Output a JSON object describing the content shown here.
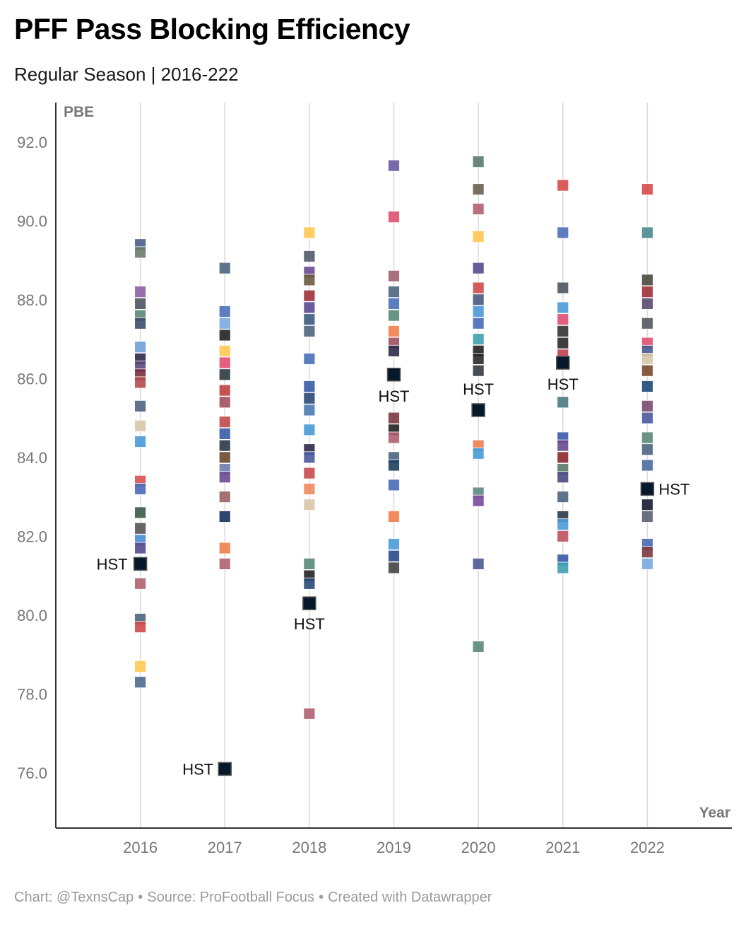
{
  "title": "PFF Pass Blocking Efficiency",
  "subtitle": "Regular Season | 2016-222",
  "footer": {
    "chart_credit": "Chart: @TexnsCap",
    "source": "Source: ProFootball Focus",
    "tool": "Created with Datawrapper",
    "separator": "•"
  },
  "colors": {
    "highlight": "#06192a",
    "grid": "#d9d9d9",
    "axis": "#333333",
    "tick_text": "#777777"
  },
  "chart_data": {
    "type": "scatter",
    "xlabel": "Year",
    "ylabel": "PBE",
    "x_ticks": [
      "2016",
      "2017",
      "2018",
      "2019",
      "2020",
      "2021",
      "2022"
    ],
    "y_ticks": [
      "76.0",
      "78.0",
      "80.0",
      "82.0",
      "84.0",
      "86.0",
      "88.0",
      "90.0",
      "92.0"
    ],
    "xlim": [
      2015,
      2023
    ],
    "ylim": [
      74.6,
      93
    ],
    "grid": "vertical",
    "marker": "square",
    "highlight_label": "HST",
    "highlight_points": [
      {
        "x": 2016,
        "y": 81.3,
        "label": "HST"
      },
      {
        "x": 2017,
        "y": 76.1,
        "label": "HST"
      },
      {
        "x": 2018,
        "y": 80.3,
        "label": "HST"
      },
      {
        "x": 2019,
        "y": 86.1,
        "label": "HST"
      },
      {
        "x": 2020,
        "y": 85.2,
        "label": "HST"
      },
      {
        "x": 2021,
        "y": 86.4,
        "label": "HST"
      },
      {
        "x": 2022,
        "y": 83.2,
        "label": "HST"
      }
    ],
    "other_points": [
      {
        "x": 2016,
        "y": 89.4,
        "color": "#4a5d8a"
      },
      {
        "x": 2016,
        "y": 89.2,
        "color": "#6b7a6e"
      },
      {
        "x": 2016,
        "y": 88.2,
        "color": "#8a62a8"
      },
      {
        "x": 2016,
        "y": 87.9,
        "color": "#4f5560"
      },
      {
        "x": 2016,
        "y": 87.6,
        "color": "#5a8a78"
      },
      {
        "x": 2016,
        "y": 87.4,
        "color": "#3b4e6a"
      },
      {
        "x": 2016,
        "y": 86.8,
        "color": "#6fa0d8"
      },
      {
        "x": 2016,
        "y": 86.5,
        "color": "#2d2a4a"
      },
      {
        "x": 2016,
        "y": 86.3,
        "color": "#5a4a80"
      },
      {
        "x": 2016,
        "y": 86.1,
        "color": "#7a3040"
      },
      {
        "x": 2016,
        "y": 85.9,
        "color": "#b54a4a"
      },
      {
        "x": 2016,
        "y": 85.3,
        "color": "#4e6580"
      },
      {
        "x": 2016,
        "y": 84.8,
        "color": "#d8c8a8"
      },
      {
        "x": 2016,
        "y": 84.4,
        "color": "#4a9ad8"
      },
      {
        "x": 2016,
        "y": 83.4,
        "color": "#d85050"
      },
      {
        "x": 2016,
        "y": 83.2,
        "color": "#4a6ab8"
      },
      {
        "x": 2016,
        "y": 82.6,
        "color": "#3a5a48"
      },
      {
        "x": 2016,
        "y": 82.2,
        "color": "#555555"
      },
      {
        "x": 2016,
        "y": 81.9,
        "color": "#4a8ad8"
      },
      {
        "x": 2016,
        "y": 81.7,
        "color": "#5a4a90"
      },
      {
        "x": 2016,
        "y": 80.8,
        "color": "#b06070"
      },
      {
        "x": 2016,
        "y": 79.9,
        "color": "#4e6580"
      },
      {
        "x": 2016,
        "y": 79.7,
        "color": "#d04a4a"
      },
      {
        "x": 2016,
        "y": 78.7,
        "color": "#ffc850"
      },
      {
        "x": 2016,
        "y": 78.3,
        "color": "#4e6a90"
      },
      {
        "x": 2017,
        "y": 88.8,
        "color": "#4e6580"
      },
      {
        "x": 2017,
        "y": 87.7,
        "color": "#4a70b8"
      },
      {
        "x": 2017,
        "y": 87.4,
        "color": "#7aaae0"
      },
      {
        "x": 2017,
        "y": 87.1,
        "color": "#222222"
      },
      {
        "x": 2017,
        "y": 86.7,
        "color": "#ffc850"
      },
      {
        "x": 2017,
        "y": 86.4,
        "color": "#e05070"
      },
      {
        "x": 2017,
        "y": 86.1,
        "color": "#2d3a40"
      },
      {
        "x": 2017,
        "y": 85.7,
        "color": "#c04040"
      },
      {
        "x": 2017,
        "y": 85.4,
        "color": "#a05060"
      },
      {
        "x": 2017,
        "y": 84.9,
        "color": "#c04a4a"
      },
      {
        "x": 2017,
        "y": 84.6,
        "color": "#3a5aa8"
      },
      {
        "x": 2017,
        "y": 84.3,
        "color": "#2a3a48"
      },
      {
        "x": 2017,
        "y": 84.0,
        "color": "#6a4a2a"
      },
      {
        "x": 2017,
        "y": 83.7,
        "color": "#6a80b0"
      },
      {
        "x": 2017,
        "y": 83.5,
        "color": "#6a4a90"
      },
      {
        "x": 2017,
        "y": 83.0,
        "color": "#9a6060"
      },
      {
        "x": 2017,
        "y": 82.5,
        "color": "#1a3060"
      },
      {
        "x": 2017,
        "y": 81.7,
        "color": "#f08050"
      },
      {
        "x": 2017,
        "y": 81.3,
        "color": "#b06070"
      },
      {
        "x": 2018,
        "y": 89.7,
        "color": "#ffc850"
      },
      {
        "x": 2018,
        "y": 89.1,
        "color": "#4f5a6a"
      },
      {
        "x": 2018,
        "y": 88.7,
        "color": "#6a4a90"
      },
      {
        "x": 2018,
        "y": 88.5,
        "color": "#6a5a40"
      },
      {
        "x": 2018,
        "y": 88.1,
        "color": "#a0303a"
      },
      {
        "x": 2018,
        "y": 87.8,
        "color": "#5a4a90"
      },
      {
        "x": 2018,
        "y": 87.5,
        "color": "#3b5a80"
      },
      {
        "x": 2018,
        "y": 87.2,
        "color": "#4e6580"
      },
      {
        "x": 2018,
        "y": 86.5,
        "color": "#4a70b8"
      },
      {
        "x": 2018,
        "y": 85.8,
        "color": "#3a5aa8"
      },
      {
        "x": 2018,
        "y": 85.5,
        "color": "#2a4a78"
      },
      {
        "x": 2018,
        "y": 85.2,
        "color": "#4a7ab0"
      },
      {
        "x": 2018,
        "y": 84.7,
        "color": "#4a9ad8"
      },
      {
        "x": 2018,
        "y": 84.2,
        "color": "#2a2a4a"
      },
      {
        "x": 2018,
        "y": 84.0,
        "color": "#4a5aa0"
      },
      {
        "x": 2018,
        "y": 83.6,
        "color": "#c84a50"
      },
      {
        "x": 2018,
        "y": 83.2,
        "color": "#f08860"
      },
      {
        "x": 2018,
        "y": 82.8,
        "color": "#d8c8a8"
      },
      {
        "x": 2018,
        "y": 81.3,
        "color": "#5a8a78"
      },
      {
        "x": 2018,
        "y": 81.0,
        "color": "#222222"
      },
      {
        "x": 2018,
        "y": 80.8,
        "color": "#2a4a78"
      },
      {
        "x": 2018,
        "y": 77.5,
        "color": "#b06070"
      },
      {
        "x": 2019,
        "y": 91.4,
        "color": "#6a5aa0"
      },
      {
        "x": 2019,
        "y": 90.1,
        "color": "#e05070"
      },
      {
        "x": 2019,
        "y": 88.6,
        "color": "#a06070"
      },
      {
        "x": 2019,
        "y": 88.2,
        "color": "#4e6580"
      },
      {
        "x": 2019,
        "y": 87.9,
        "color": "#4a70b8"
      },
      {
        "x": 2019,
        "y": 87.6,
        "color": "#5a8a78"
      },
      {
        "x": 2019,
        "y": 87.2,
        "color": "#f08050"
      },
      {
        "x": 2019,
        "y": 86.9,
        "color": "#a05060"
      },
      {
        "x": 2019,
        "y": 86.7,
        "color": "#2d2a4a"
      },
      {
        "x": 2019,
        "y": 85.0,
        "color": "#7a3a40"
      },
      {
        "x": 2019,
        "y": 84.7,
        "color": "#222222"
      },
      {
        "x": 2019,
        "y": 84.5,
        "color": "#b06070"
      },
      {
        "x": 2019,
        "y": 84.0,
        "color": "#4e6580"
      },
      {
        "x": 2019,
        "y": 83.8,
        "color": "#1a4060"
      },
      {
        "x": 2019,
        "y": 83.3,
        "color": "#4a6ab8"
      },
      {
        "x": 2019,
        "y": 82.5,
        "color": "#f08050"
      },
      {
        "x": 2019,
        "y": 81.8,
        "color": "#4a9ad8"
      },
      {
        "x": 2019,
        "y": 81.5,
        "color": "#2a4a88"
      },
      {
        "x": 2019,
        "y": 81.2,
        "color": "#444444"
      },
      {
        "x": 2020,
        "y": 91.5,
        "color": "#5a7a70"
      },
      {
        "x": 2020,
        "y": 90.8,
        "color": "#6a6050"
      },
      {
        "x": 2020,
        "y": 90.3,
        "color": "#b06070"
      },
      {
        "x": 2020,
        "y": 89.6,
        "color": "#ffc850"
      },
      {
        "x": 2020,
        "y": 88.8,
        "color": "#5a4a90"
      },
      {
        "x": 2020,
        "y": 88.3,
        "color": "#d04a4a"
      },
      {
        "x": 2020,
        "y": 88.0,
        "color": "#4a5a80"
      },
      {
        "x": 2020,
        "y": 87.7,
        "color": "#4a9ad8"
      },
      {
        "x": 2020,
        "y": 87.4,
        "color": "#4a6ab8"
      },
      {
        "x": 2020,
        "y": 87.0,
        "color": "#40a0b0"
      },
      {
        "x": 2020,
        "y": 86.7,
        "color": "#222222"
      },
      {
        "x": 2020,
        "y": 86.5,
        "color": "#2a2a2a"
      },
      {
        "x": 2020,
        "y": 86.2,
        "color": "#333a40"
      },
      {
        "x": 2020,
        "y": 84.3,
        "color": "#f08050"
      },
      {
        "x": 2020,
        "y": 84.1,
        "color": "#4a9ad8"
      },
      {
        "x": 2020,
        "y": 83.1,
        "color": "#5a8a80"
      },
      {
        "x": 2020,
        "y": 82.9,
        "color": "#7a4aa0"
      },
      {
        "x": 2020,
        "y": 81.3,
        "color": "#4a5a90"
      },
      {
        "x": 2020,
        "y": 79.2,
        "color": "#5a8a78"
      },
      {
        "x": 2021,
        "y": 90.9,
        "color": "#d84a4a"
      },
      {
        "x": 2021,
        "y": 89.7,
        "color": "#4a70b8"
      },
      {
        "x": 2021,
        "y": 88.3,
        "color": "#4f5560"
      },
      {
        "x": 2021,
        "y": 87.8,
        "color": "#4a9ad8"
      },
      {
        "x": 2021,
        "y": 87.5,
        "color": "#e05070"
      },
      {
        "x": 2021,
        "y": 87.2,
        "color": "#333333"
      },
      {
        "x": 2021,
        "y": 86.9,
        "color": "#2a2a2a"
      },
      {
        "x": 2021,
        "y": 86.6,
        "color": "#c04050"
      },
      {
        "x": 2021,
        "y": 85.4,
        "color": "#4a7a80"
      },
      {
        "x": 2021,
        "y": 84.5,
        "color": "#3a5aa8"
      },
      {
        "x": 2021,
        "y": 84.3,
        "color": "#6a4a90"
      },
      {
        "x": 2021,
        "y": 84.0,
        "color": "#8a2a2a"
      },
      {
        "x": 2021,
        "y": 83.7,
        "color": "#5a7a68"
      },
      {
        "x": 2021,
        "y": 83.5,
        "color": "#4a4a80"
      },
      {
        "x": 2021,
        "y": 83.0,
        "color": "#4e6580"
      },
      {
        "x": 2021,
        "y": 82.5,
        "color": "#2a3a48"
      },
      {
        "x": 2021,
        "y": 82.3,
        "color": "#4a9ad8"
      },
      {
        "x": 2021,
        "y": 82.0,
        "color": "#c05060"
      },
      {
        "x": 2021,
        "y": 81.4,
        "color": "#3a5aa8"
      },
      {
        "x": 2021,
        "y": 81.2,
        "color": "#40a0b0"
      },
      {
        "x": 2022,
        "y": 90.8,
        "color": "#d84a4a"
      },
      {
        "x": 2022,
        "y": 89.7,
        "color": "#4a8a90"
      },
      {
        "x": 2022,
        "y": 88.5,
        "color": "#4a4a40"
      },
      {
        "x": 2022,
        "y": 88.2,
        "color": "#a0303a"
      },
      {
        "x": 2022,
        "y": 87.9,
        "color": "#5a4a70"
      },
      {
        "x": 2022,
        "y": 87.4,
        "color": "#555a60"
      },
      {
        "x": 2022,
        "y": 86.9,
        "color": "#e05070"
      },
      {
        "x": 2022,
        "y": 86.7,
        "color": "#4a5a90"
      },
      {
        "x": 2022,
        "y": 86.5,
        "color": "#d8c8a8"
      },
      {
        "x": 2022,
        "y": 86.2,
        "color": "#7a4a2a"
      },
      {
        "x": 2022,
        "y": 85.8,
        "color": "#1a4a78"
      },
      {
        "x": 2022,
        "y": 85.3,
        "color": "#7a4a70"
      },
      {
        "x": 2022,
        "y": 85.0,
        "color": "#4a5aa0"
      },
      {
        "x": 2022,
        "y": 84.5,
        "color": "#5a8a78"
      },
      {
        "x": 2022,
        "y": 84.2,
        "color": "#4e6580"
      },
      {
        "x": 2022,
        "y": 83.8,
        "color": "#4a6aa0"
      },
      {
        "x": 2022,
        "y": 82.8,
        "color": "#1a1a30"
      },
      {
        "x": 2022,
        "y": 82.5,
        "color": "#5a6070"
      },
      {
        "x": 2022,
        "y": 81.8,
        "color": "#4a6ab8"
      },
      {
        "x": 2022,
        "y": 81.6,
        "color": "#7a3a40"
      },
      {
        "x": 2022,
        "y": 81.3,
        "color": "#7aaae0"
      }
    ]
  }
}
